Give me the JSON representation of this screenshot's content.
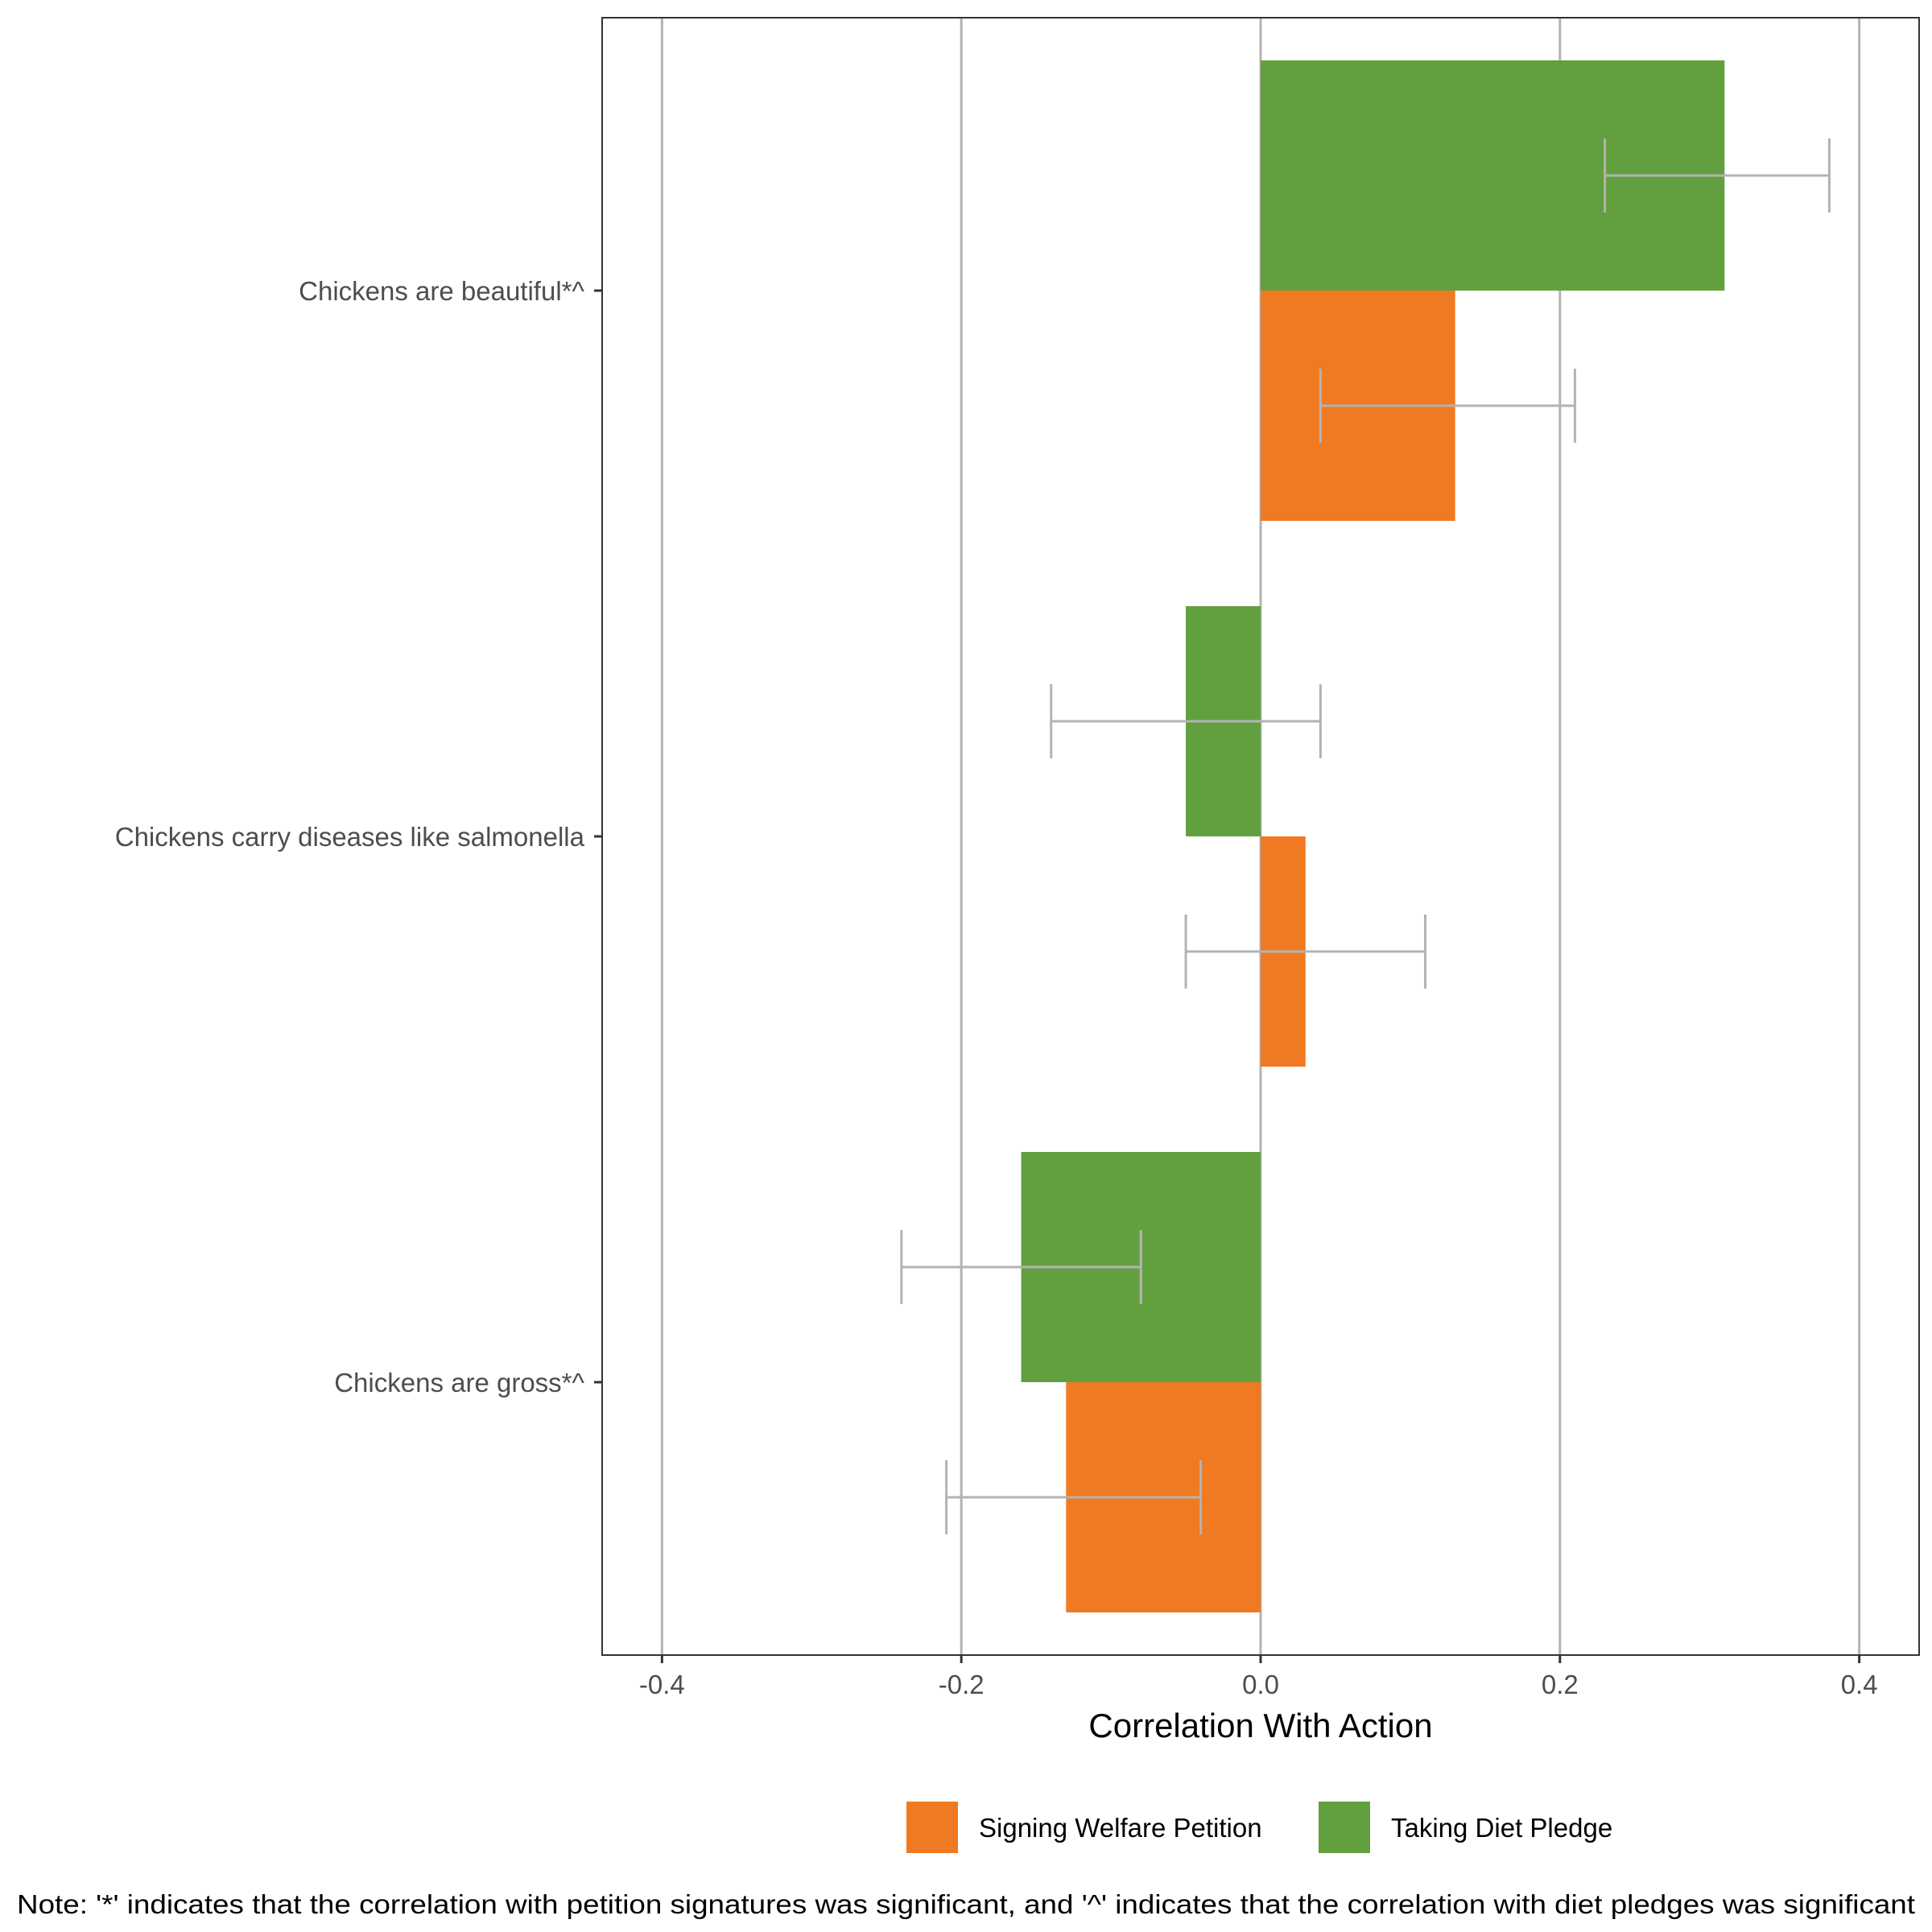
{
  "chart_data": {
    "type": "bar",
    "orientation": "horizontal",
    "categories": [
      "Chickens are beautiful*^",
      "Chickens carry diseases like salmonella",
      "Chickens are gross*^"
    ],
    "series": [
      {
        "name": "Taking Diet Pledge",
        "color": "#62a03f",
        "values": [
          0.31,
          -0.05,
          -0.16
        ],
        "ci_low": [
          0.23,
          -0.14,
          -0.24
        ],
        "ci_high": [
          0.38,
          0.04,
          -0.08
        ]
      },
      {
        "name": "Signing Welfare Petition",
        "color": "#f07a21",
        "values": [
          0.13,
          0.03,
          -0.13
        ],
        "ci_low": [
          0.04,
          -0.05,
          -0.21
        ],
        "ci_high": [
          0.21,
          0.11,
          -0.04
        ]
      }
    ],
    "xlabel": "Correlation With Action",
    "ylabel": "",
    "xlim": [
      -0.44,
      0.44
    ],
    "xticks": [
      -0.4,
      -0.2,
      0.0,
      0.2,
      0.4
    ],
    "xtick_labels": [
      "-0.4",
      "-0.2",
      "0.0",
      "0.2",
      "0.4"
    ],
    "grid": true,
    "legend": {
      "placement": "bottom",
      "entries": [
        {
          "label": "Signing Welfare Petition",
          "color": "#f07a21"
        },
        {
          "label": "Taking Diet Pledge",
          "color": "#62a03f"
        }
      ]
    },
    "note": "Note: '*' indicates that the correlation with petition signatures was significant, and '^' indicates that the correlation with diet pledges was significant",
    "errorbar_color": "#b3b3b3",
    "grid_color": "#b3b3b3"
  }
}
